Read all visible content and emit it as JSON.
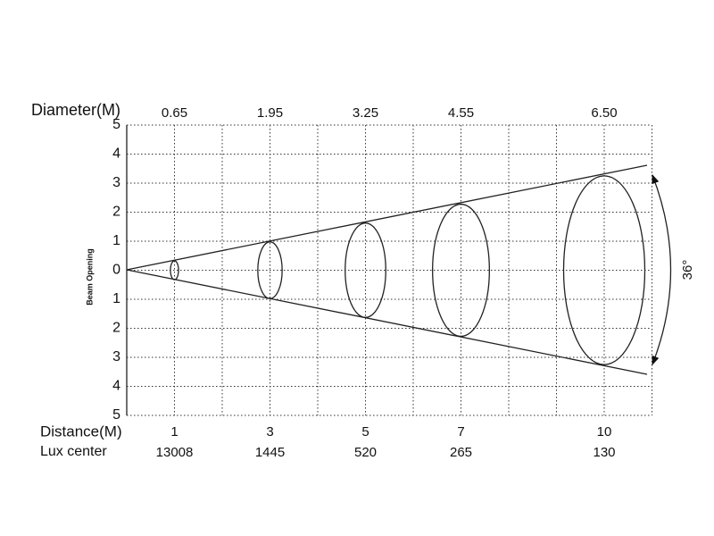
{
  "diameter_label": "Diameter(M)",
  "distance_label": "Distance(M)",
  "lux_label": "Lux center",
  "y_axis_title": "Beam Opening",
  "angle": "36°",
  "y_ticks": [
    5,
    4,
    3,
    2,
    1,
    0,
    {
      "value": -1,
      "label": "1"
    },
    {
      "value": -2,
      "label": "2"
    },
    {
      "value": -3,
      "label": "3"
    },
    {
      "value": -4,
      "label": "4"
    },
    {
      "value": -5,
      "label": "5"
    }
  ],
  "columns": [
    {
      "distance": 1,
      "diameter": {
        "value": 0.65,
        "label": "0.65"
      },
      "lux": 13008
    },
    {
      "distance": 3,
      "diameter": {
        "value": 1.95,
        "label": "1.95"
      },
      "lux": 1445
    },
    {
      "distance": 5,
      "diameter": {
        "value": 3.25,
        "label": "3.25"
      },
      "lux": 520
    },
    {
      "distance": 7,
      "diameter": {
        "value": 4.55,
        "label": "4.55"
      },
      "lux": 265
    },
    {
      "distance": 10,
      "diameter": {
        "value": 6.5,
        "label": "6.50"
      },
      "lux": 130
    }
  ]
}
